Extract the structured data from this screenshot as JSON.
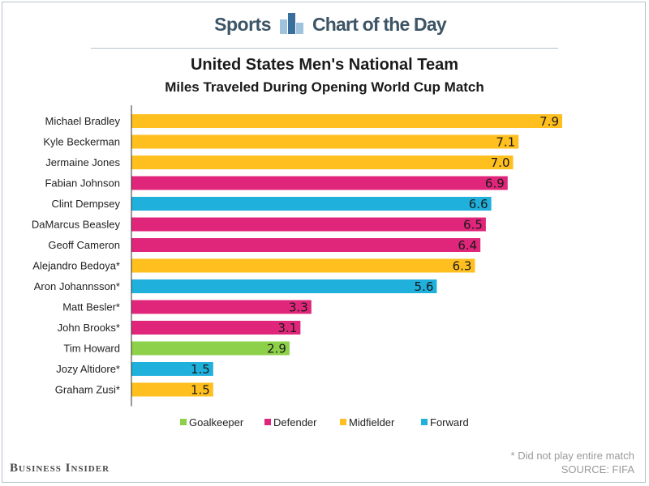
{
  "header": {
    "left_label": "Sports",
    "right_label": "Chart of the Day"
  },
  "footer": {
    "note": "* Did not play entire match",
    "source": "SOURCE: FIFA",
    "brand": "Business Insider"
  },
  "colors": {
    "Goalkeeper": "#8dd14a",
    "Defender": "#e0267a",
    "Midfielder": "#ffbf1f",
    "Forward": "#1fb0dc"
  },
  "chart_data": {
    "type": "bar",
    "orientation": "horizontal",
    "title": "United States Men's National Team",
    "subtitle": "Miles Traveled During Opening World Cup Match",
    "categories": [
      "Michael Bradley",
      "Kyle Beckerman",
      "Jermaine Jones",
      "Fabian Johnson",
      "Clint Dempsey",
      "DaMarcus Beasley",
      "Geoff Cameron",
      "Alejandro Bedoya*",
      "Aron Johannsson*",
      "Matt Besler*",
      "John Brooks*",
      "Tim Howard",
      "Jozy Altidore*",
      "Graham Zusi*"
    ],
    "values": [
      7.9,
      7.1,
      7.0,
      6.9,
      6.6,
      6.5,
      6.4,
      6.3,
      5.6,
      3.3,
      3.1,
      2.9,
      1.5,
      1.5
    ],
    "value_labels": [
      "7.9",
      "7.1",
      "7.0",
      "6.9",
      "6.6",
      "6.5",
      "6.4",
      "6.3",
      "5.6",
      "3.3",
      "3.1",
      "2.9",
      "1.5",
      "1.5"
    ],
    "groups": [
      "Midfielder",
      "Midfielder",
      "Midfielder",
      "Defender",
      "Forward",
      "Defender",
      "Defender",
      "Midfielder",
      "Forward",
      "Defender",
      "Defender",
      "Goalkeeper",
      "Forward",
      "Midfielder"
    ],
    "legend": [
      "Goalkeeper",
      "Defender",
      "Midfielder",
      "Forward"
    ],
    "legend_position": "bottom",
    "xlim": [
      0,
      8
    ],
    "grid": false
  }
}
